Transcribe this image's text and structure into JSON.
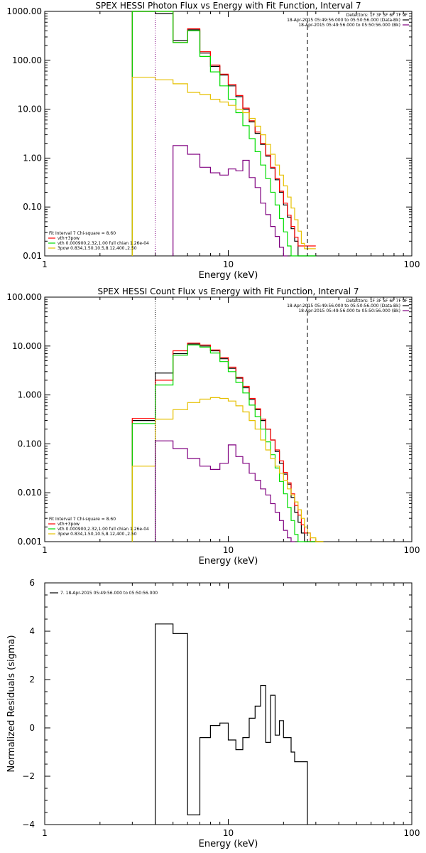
{
  "colors": {
    "data": "#000000",
    "background": "#800080",
    "total": "#ff0000",
    "vth": "#00dd00",
    "power_law": "#e6c000",
    "residual": "#000000"
  },
  "chart_data": [
    {
      "type": "line",
      "title": "SPEX HESSI Photon Flux vs Energy with Fit Function, Interval 7",
      "xlabel": "Energy (keV)",
      "ylabel": "",
      "xscale": "log",
      "yscale": "log",
      "xlim": [
        1,
        100
      ],
      "ylim": [
        0.01,
        1000
      ],
      "xticks": [
        "1",
        "10",
        "100"
      ],
      "yticks": [
        "1000.00",
        "100.00",
        "10.00",
        "1.00",
        "0.10",
        "0.01"
      ],
      "bin_edges": [
        3,
        4,
        5,
        6,
        7,
        8,
        9,
        10,
        11,
        12,
        13,
        14,
        15,
        16,
        17,
        18,
        19,
        20,
        21,
        22,
        23,
        24,
        25,
        26,
        27,
        28,
        30
      ],
      "series": [
        {
          "key": "data",
          "values": [
            1000,
            900,
            250,
            420,
            140,
            75,
            50,
            30,
            18,
            10,
            5.5,
            3.2,
            1.9,
            1.1,
            0.62,
            0.36,
            0.2,
            0.11,
            0.062,
            0.036,
            0.02,
            0.01,
            0.01,
            0.01,
            0.01,
            0.01
          ]
        },
        {
          "key": "total",
          "values": [
            1000,
            1000,
            230,
            440,
            150,
            80,
            52,
            32,
            19,
            10.5,
            5.8,
            3.4,
            2.0,
            1.15,
            0.65,
            0.38,
            0.21,
            0.12,
            0.068,
            0.04,
            0.024,
            0.016,
            0.016,
            0.016,
            0.016,
            0.016
          ]
        },
        {
          "key": "vth",
          "values": [
            1000,
            1000,
            230,
            400,
            120,
            58,
            30,
            16,
            8.5,
            4.6,
            2.5,
            1.35,
            0.72,
            0.38,
            0.2,
            0.11,
            0.058,
            0.031,
            0.016,
            0.01,
            0.01,
            0.01,
            0.01,
            0.01,
            0.01,
            0.01
          ]
        },
        {
          "key": "power_law",
          "values": [
            45,
            40,
            33,
            22,
            20,
            16,
            14,
            12,
            10,
            8.5,
            6.5,
            4.5,
            3.0,
            1.9,
            1.2,
            0.72,
            0.45,
            0.27,
            0.16,
            0.095,
            0.055,
            0.032,
            0.018,
            0.014,
            0.014,
            0.014
          ]
        },
        {
          "key": "background",
          "values": [
            null,
            null,
            1.8,
            1.2,
            0.65,
            0.5,
            0.45,
            0.6,
            0.55,
            0.9,
            0.4,
            0.25,
            0.12,
            0.07,
            0.04,
            0.025,
            0.015,
            0.01,
            null,
            null,
            null,
            null,
            null,
            null,
            null,
            null
          ]
        }
      ],
      "vlines": [
        {
          "x": 4,
          "style": "dotted",
          "color": "#800080"
        },
        {
          "x": 27,
          "style": "dashed",
          "color": "#000000"
        }
      ],
      "legend_top": [
        "Detectors: 1F 3F 5F 6F 7F 9F",
        "18-Apr-2015 05:49:56.000 to 05:50:56.000 (Data-Bk)",
        "18-Apr-2015 05:49:56.000 to 05:50:56.000 (Bk)"
      ],
      "legend_bottom": [
        "Fit Interval  7   Chi-square = 8.60",
        "vth+3pow",
        "vth 0.000900,2.32,1.00   full chian 1.26e-04",
        "3pow 0.834,1.50,10.5,8.12,400.,2.50"
      ]
    },
    {
      "type": "line",
      "title": "SPEX HESSI Count Flux vs Energy with Fit Function, Interval 7",
      "xlabel": "Energy (keV)",
      "ylabel": "",
      "xscale": "log",
      "yscale": "log",
      "xlim": [
        1,
        100
      ],
      "ylim": [
        0.001,
        100
      ],
      "xticks": [
        "1",
        "10",
        "100"
      ],
      "yticks": [
        "100.000",
        "10.000",
        "1.000",
        "0.100",
        "0.010",
        "0.001"
      ],
      "bin_edges": [
        3,
        4,
        5,
        6,
        7,
        8,
        9,
        10,
        11,
        12,
        13,
        14,
        15,
        16,
        17,
        18,
        19,
        20,
        21,
        22,
        23,
        24,
        25,
        26,
        27,
        28,
        30,
        33
      ],
      "series": [
        {
          "key": "data",
          "values": [
            0.3,
            2.8,
            7.0,
            11,
            10,
            8,
            5.5,
            3.5,
            2.2,
            1.4,
            0.8,
            0.5,
            0.3,
            0.2,
            0.12,
            0.07,
            0.04,
            0.024,
            0.015,
            0.008,
            0.004,
            0.0025,
            0.0015,
            0.001,
            0.001,
            0.001,
            0.001
          ]
        },
        {
          "key": "total",
          "values": [
            0.33,
            2.0,
            8.0,
            11.5,
            10.5,
            8.3,
            5.8,
            3.7,
            2.3,
            1.5,
            0.85,
            0.52,
            0.32,
            0.2,
            0.12,
            0.075,
            0.045,
            0.026,
            0.016,
            0.0095,
            0.0055,
            0.0035,
            0.0022,
            0.0015,
            0.0015,
            0.001,
            0.001
          ]
        },
        {
          "key": "vth",
          "values": [
            0.26,
            1.6,
            6.5,
            10.5,
            9.5,
            7.2,
            4.8,
            3.0,
            1.8,
            1.1,
            0.62,
            0.36,
            0.2,
            0.11,
            0.06,
            0.032,
            0.017,
            0.0095,
            0.005,
            0.0027,
            0.0014,
            0.001,
            0.001,
            0.001,
            0.001,
            0.001,
            0.001
          ]
        },
        {
          "key": "power_law",
          "values": [
            0.035,
            0.32,
            0.5,
            0.7,
            0.82,
            0.88,
            0.85,
            0.75,
            0.6,
            0.45,
            0.3,
            0.2,
            0.12,
            0.075,
            0.05,
            0.035,
            0.025,
            0.018,
            0.012,
            0.009,
            0.0065,
            0.0045,
            0.003,
            0.002,
            0.0015,
            0.0012,
            0.001
          ]
        },
        {
          "key": "background",
          "values": [
            null,
            0.115,
            0.08,
            0.05,
            0.035,
            0.03,
            0.04,
            0.095,
            0.055,
            0.04,
            0.025,
            0.018,
            0.012,
            0.009,
            0.006,
            0.004,
            0.0027,
            0.0017,
            0.0012,
            0.001,
            null,
            null,
            null,
            null,
            null,
            null,
            null
          ]
        }
      ],
      "vlines": [
        {
          "x": 4,
          "style": "dotted",
          "color": "#000000"
        },
        {
          "x": 27,
          "style": "dashed",
          "color": "#000000"
        }
      ],
      "legend_top": [
        "Detectors: 1F 3F 5F 6F 7F 9F",
        "18-Apr-2015 05:49:56.000 to 05:50:56.000 (Data-Bk)",
        "18-Apr-2015 05:49:56.000 to 05:50:56.000 (Bk)"
      ],
      "legend_bottom": [
        "Fit Interval  7   Chi-square = 8.60",
        "vth+3pow",
        "vth 0.000900,2.32,1.00   full chian 1.26e-04",
        "3pow 0.834,1.50,10.5,8.12,400.,2.50"
      ]
    },
    {
      "type": "line",
      "title": "",
      "xlabel": "Energy (keV)",
      "ylabel": "Normalized Residuals (sigma)",
      "xscale": "log",
      "yscale": "linear",
      "xlim": [
        1,
        100
      ],
      "ylim": [
        -4,
        6
      ],
      "xticks": [
        "1",
        "10",
        "100"
      ],
      "yticks": [
        "6",
        "4",
        "2",
        "0",
        "−2",
        "−4"
      ],
      "bin_edges": [
        4,
        5,
        6,
        7,
        8,
        9,
        10,
        11,
        12,
        13,
        14,
        15,
        16,
        17,
        18,
        19,
        20,
        21,
        22,
        23,
        24,
        25,
        26,
        27
      ],
      "series": [
        {
          "key": "residual",
          "values": [
            4.3,
            3.9,
            -3.6,
            -0.4,
            0.1,
            0.2,
            -0.5,
            -0.9,
            -0.4,
            0.4,
            0.9,
            1.75,
            -0.6,
            1.35,
            -0.3,
            0.3,
            -0.4,
            -0.4,
            -1.0,
            -1.4,
            -1.4,
            -1.4,
            -1.4
          ]
        }
      ],
      "legend": [
        "7. 18-Apr-2015 05:49:56.000 to 05:50:56.000"
      ]
    }
  ]
}
